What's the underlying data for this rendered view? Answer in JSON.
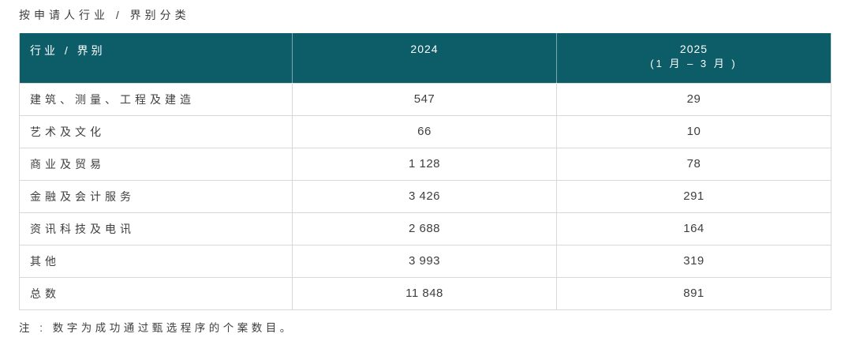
{
  "title": "按申请人行业 / 界别分类",
  "table": {
    "headers": {
      "col1": "行业 / 界别",
      "col2": "2024",
      "col3_line1": "2025",
      "col3_line2": "(1 月  –  3 月 )"
    },
    "rows": [
      {
        "label": "建筑、测量、工程及建造",
        "v2024": "547",
        "v2025": "29"
      },
      {
        "label": "艺术及文化",
        "v2024": "66",
        "v2025": "10"
      },
      {
        "label": "商业及贸易",
        "v2024": "1 128",
        "v2025": "78"
      },
      {
        "label": "金融及会计服务",
        "v2024": "3 426",
        "v2025": "291"
      },
      {
        "label": "资讯科技及电讯",
        "v2024": "2 688",
        "v2025": "164"
      },
      {
        "label": "其他",
        "v2024": "3 993",
        "v2025": "319"
      },
      {
        "label": "总数",
        "v2024": "11 848",
        "v2025": "891"
      }
    ]
  },
  "note": "注 : 数字为成功通过甄选程序的个案数目。",
  "colors": {
    "header_bg": "#0d5d68",
    "border": "#d8d8d8",
    "text": "#3f3f3f"
  }
}
